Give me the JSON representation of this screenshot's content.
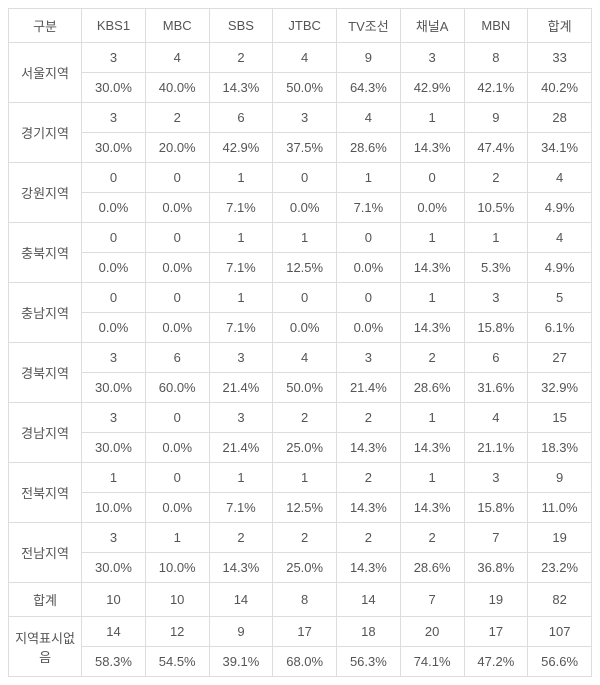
{
  "header": {
    "label": "구분",
    "columns": [
      "KBS1",
      "MBC",
      "SBS",
      "JTBC",
      "TV조선",
      "채널A",
      "MBN",
      "합계"
    ]
  },
  "rows": [
    {
      "label": "서울지역",
      "count": [
        "3",
        "4",
        "2",
        "4",
        "9",
        "3",
        "8",
        "33"
      ],
      "pct": [
        "30.0%",
        "40.0%",
        "14.3%",
        "50.0%",
        "64.3%",
        "42.9%",
        "42.1%",
        "40.2%"
      ]
    },
    {
      "label": "경기지역",
      "count": [
        "3",
        "2",
        "6",
        "3",
        "4",
        "1",
        "9",
        "28"
      ],
      "pct": [
        "30.0%",
        "20.0%",
        "42.9%",
        "37.5%",
        "28.6%",
        "14.3%",
        "47.4%",
        "34.1%"
      ]
    },
    {
      "label": "강원지역",
      "count": [
        "0",
        "0",
        "1",
        "0",
        "1",
        "0",
        "2",
        "4"
      ],
      "pct": [
        "0.0%",
        "0.0%",
        "7.1%",
        "0.0%",
        "7.1%",
        "0.0%",
        "10.5%",
        "4.9%"
      ]
    },
    {
      "label": "충북지역",
      "count": [
        "0",
        "0",
        "1",
        "1",
        "0",
        "1",
        "1",
        "4"
      ],
      "pct": [
        "0.0%",
        "0.0%",
        "7.1%",
        "12.5%",
        "0.0%",
        "14.3%",
        "5.3%",
        "4.9%"
      ]
    },
    {
      "label": "충남지역",
      "count": [
        "0",
        "0",
        "1",
        "0",
        "0",
        "1",
        "3",
        "5"
      ],
      "pct": [
        "0.0%",
        "0.0%",
        "7.1%",
        "0.0%",
        "0.0%",
        "14.3%",
        "15.8%",
        "6.1%"
      ]
    },
    {
      "label": "경북지역",
      "count": [
        "3",
        "6",
        "3",
        "4",
        "3",
        "2",
        "6",
        "27"
      ],
      "pct": [
        "30.0%",
        "60.0%",
        "21.4%",
        "50.0%",
        "21.4%",
        "28.6%",
        "31.6%",
        "32.9%"
      ]
    },
    {
      "label": "경남지역",
      "count": [
        "3",
        "0",
        "3",
        "2",
        "2",
        "1",
        "4",
        "15"
      ],
      "pct": [
        "30.0%",
        "0.0%",
        "21.4%",
        "25.0%",
        "14.3%",
        "14.3%",
        "21.1%",
        "18.3%"
      ]
    },
    {
      "label": "전북지역",
      "count": [
        "1",
        "0",
        "1",
        "1",
        "2",
        "1",
        "3",
        "9"
      ],
      "pct": [
        "10.0%",
        "0.0%",
        "7.1%",
        "12.5%",
        "14.3%",
        "14.3%",
        "15.8%",
        "11.0%"
      ]
    },
    {
      "label": "전남지역",
      "count": [
        "3",
        "1",
        "2",
        "2",
        "2",
        "2",
        "7",
        "19"
      ],
      "pct": [
        "30.0%",
        "10.0%",
        "14.3%",
        "25.0%",
        "14.3%",
        "28.6%",
        "36.8%",
        "23.2%"
      ]
    }
  ],
  "totals": {
    "label": "합계",
    "count": [
      "10",
      "10",
      "14",
      "8",
      "14",
      "7",
      "19",
      "82"
    ]
  },
  "unmarked": {
    "label": "지역표시없음",
    "count": [
      "14",
      "12",
      "9",
      "17",
      "18",
      "20",
      "17",
      "107"
    ],
    "pct": [
      "58.3%",
      "54.5%",
      "39.1%",
      "68.0%",
      "56.3%",
      "74.1%",
      "47.2%",
      "56.6%"
    ]
  }
}
